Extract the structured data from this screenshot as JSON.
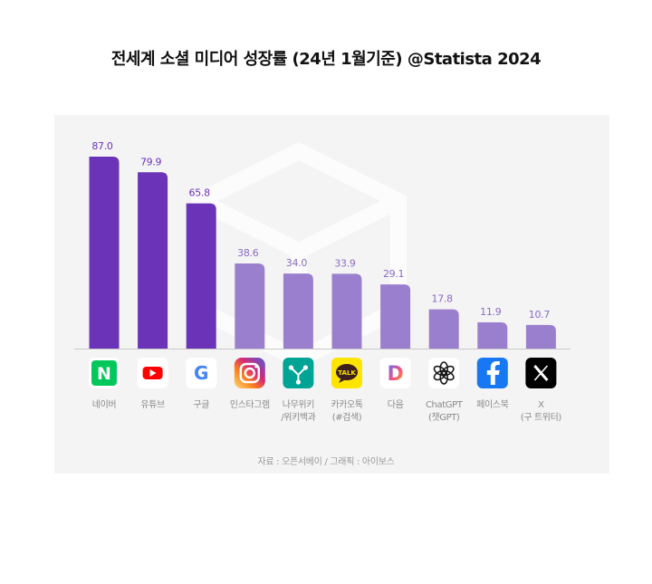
{
  "title": "전세계 소셜 미디어 성장률 (24년 1월기준) @Statista 2024",
  "source": "자료 : 오픈서베이 / 그래픽 : 아이보스",
  "colors": {
    "bar_dark": "#6a33b8",
    "bar_light": "#9b7fcf",
    "label_dark": "#6a33b8",
    "label_light": "#8a6bc4"
  },
  "chart_data": {
    "type": "bar",
    "title": "전세계 소셜 미디어 성장률 (24년 1월기준) @Statista 2024",
    "xlabel": "",
    "ylabel": "",
    "ylim": [
      0,
      90
    ],
    "grid": false,
    "legend": "none",
    "categories": [
      [
        "네이버"
      ],
      [
        "유튜브"
      ],
      [
        "구글"
      ],
      [
        "인스타그램"
      ],
      [
        "나무위키",
        "/위키백과"
      ],
      [
        "카카오톡",
        "(#검색)"
      ],
      [
        "다음"
      ],
      [
        "ChatGPT",
        "(챗GPT)"
      ],
      [
        "페이스북"
      ],
      [
        "X",
        "(구 트위터)"
      ]
    ],
    "values": [
      87.0,
      79.9,
      65.8,
      38.6,
      34.0,
      33.9,
      29.1,
      17.8,
      11.9,
      10.7
    ],
    "value_labels": [
      "87.0",
      "79.9",
      "65.8",
      "38.6",
      "34.0",
      "33.9",
      "29.1",
      "17.8",
      "11.9",
      "10.7"
    ],
    "highlight_count": 3,
    "icons": [
      "naver-icon",
      "youtube-icon",
      "google-icon",
      "instagram-icon",
      "namuwiki-icon",
      "kakaotalk-icon",
      "daum-icon",
      "chatgpt-icon",
      "facebook-icon",
      "x-icon"
    ],
    "icon_text": {
      "naver-icon": "N",
      "google-icon": "G",
      "kakaotalk-icon": "TALK",
      "daum-icon": "D"
    }
  }
}
